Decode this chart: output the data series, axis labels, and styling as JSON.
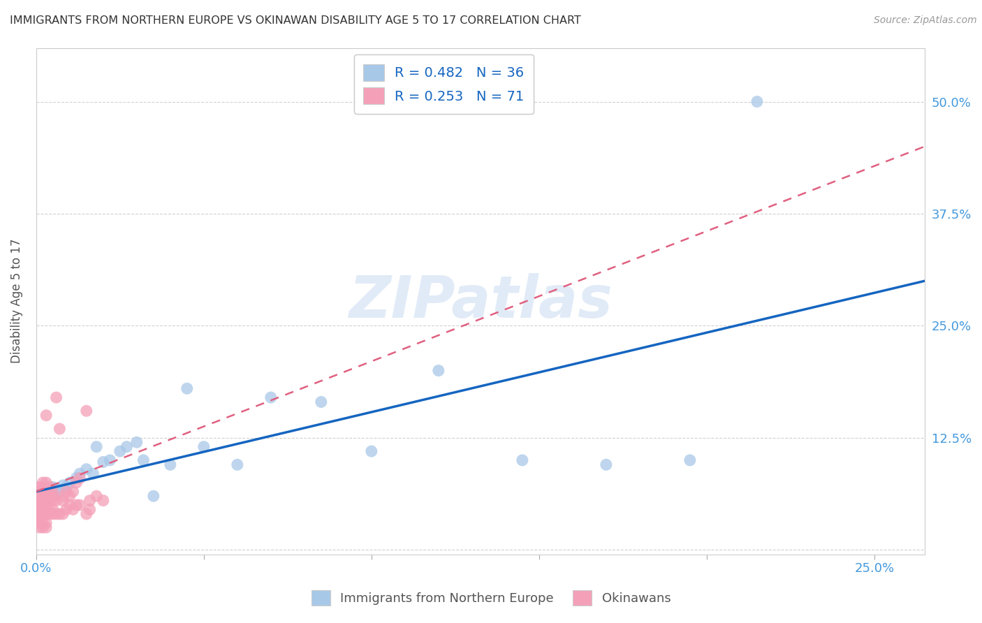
{
  "title": "IMMIGRANTS FROM NORTHERN EUROPE VS OKINAWAN DISABILITY AGE 5 TO 17 CORRELATION CHART",
  "source": "Source: ZipAtlas.com",
  "ylabel": "Disability Age 5 to 17",
  "xlim": [
    0.0,
    0.265
  ],
  "ylim": [
    -0.005,
    0.56
  ],
  "xticks": [
    0.0,
    0.05,
    0.1,
    0.15,
    0.2,
    0.25
  ],
  "yticks": [
    0.0,
    0.125,
    0.25,
    0.375,
    0.5
  ],
  "xticklabels": [
    "0.0%",
    "",
    "",
    "",
    "",
    "25.0%"
  ],
  "yticklabels_right": [
    "",
    "12.5%",
    "25.0%",
    "37.5%",
    "50.0%"
  ],
  "blue_fill": "#a8c8e8",
  "pink_fill": "#f4a0b8",
  "blue_line": "#1565c0",
  "pink_line": "#e06080",
  "axis_label_color": "#4499dd",
  "R_blue": 0.482,
  "N_blue": 36,
  "R_pink": 0.253,
  "N_pink": 71,
  "blue_x": [
    0.001,
    0.002,
    0.003,
    0.003,
    0.004,
    0.005,
    0.005,
    0.006,
    0.007,
    0.008,
    0.009,
    0.01,
    0.012,
    0.013,
    0.015,
    0.017,
    0.018,
    0.02,
    0.022,
    0.025,
    0.027,
    0.03,
    0.032,
    0.035,
    0.04,
    0.045,
    0.05,
    0.06,
    0.07,
    0.085,
    0.1,
    0.12,
    0.145,
    0.17,
    0.195,
    0.215
  ],
  "blue_y": [
    0.065,
    0.06,
    0.055,
    0.068,
    0.062,
    0.07,
    0.06,
    0.068,
    0.065,
    0.072,
    0.07,
    0.075,
    0.08,
    0.085,
    0.09,
    0.085,
    0.115,
    0.098,
    0.1,
    0.11,
    0.115,
    0.12,
    0.1,
    0.06,
    0.095,
    0.18,
    0.115,
    0.095,
    0.17,
    0.165,
    0.11,
    0.2,
    0.1,
    0.095,
    0.1,
    0.5
  ],
  "pink_x": [
    0.0003,
    0.0005,
    0.001,
    0.001,
    0.001,
    0.001,
    0.0015,
    0.0015,
    0.002,
    0.002,
    0.002,
    0.002,
    0.002,
    0.003,
    0.003,
    0.003,
    0.003,
    0.003,
    0.004,
    0.004,
    0.004,
    0.004,
    0.005,
    0.005,
    0.005,
    0.006,
    0.006,
    0.007,
    0.008,
    0.008,
    0.009,
    0.01,
    0.011,
    0.012,
    0.013,
    0.015,
    0.016,
    0.018,
    0.02,
    0.0003,
    0.0005,
    0.0008,
    0.001,
    0.001,
    0.0015,
    0.002,
    0.002,
    0.003,
    0.003,
    0.004,
    0.004,
    0.005,
    0.005,
    0.006,
    0.007,
    0.008,
    0.009,
    0.01,
    0.011,
    0.012,
    0.013,
    0.015,
    0.016,
    0.0003,
    0.0005,
    0.001,
    0.001,
    0.002,
    0.002,
    0.003,
    0.003
  ],
  "pink_y": [
    0.06,
    0.065,
    0.07,
    0.065,
    0.055,
    0.05,
    0.055,
    0.06,
    0.06,
    0.065,
    0.07,
    0.055,
    0.075,
    0.055,
    0.06,
    0.065,
    0.075,
    0.15,
    0.055,
    0.06,
    0.065,
    0.07,
    0.055,
    0.06,
    0.065,
    0.055,
    0.17,
    0.135,
    0.055,
    0.06,
    0.065,
    0.06,
    0.065,
    0.075,
    0.08,
    0.155,
    0.055,
    0.06,
    0.055,
    0.045,
    0.04,
    0.04,
    0.045,
    0.035,
    0.04,
    0.04,
    0.045,
    0.04,
    0.045,
    0.04,
    0.045,
    0.04,
    0.045,
    0.04,
    0.04,
    0.04,
    0.045,
    0.05,
    0.045,
    0.05,
    0.05,
    0.04,
    0.045,
    0.03,
    0.03,
    0.03,
    0.025,
    0.03,
    0.025,
    0.03,
    0.025
  ],
  "watermark": "ZIPatlas"
}
